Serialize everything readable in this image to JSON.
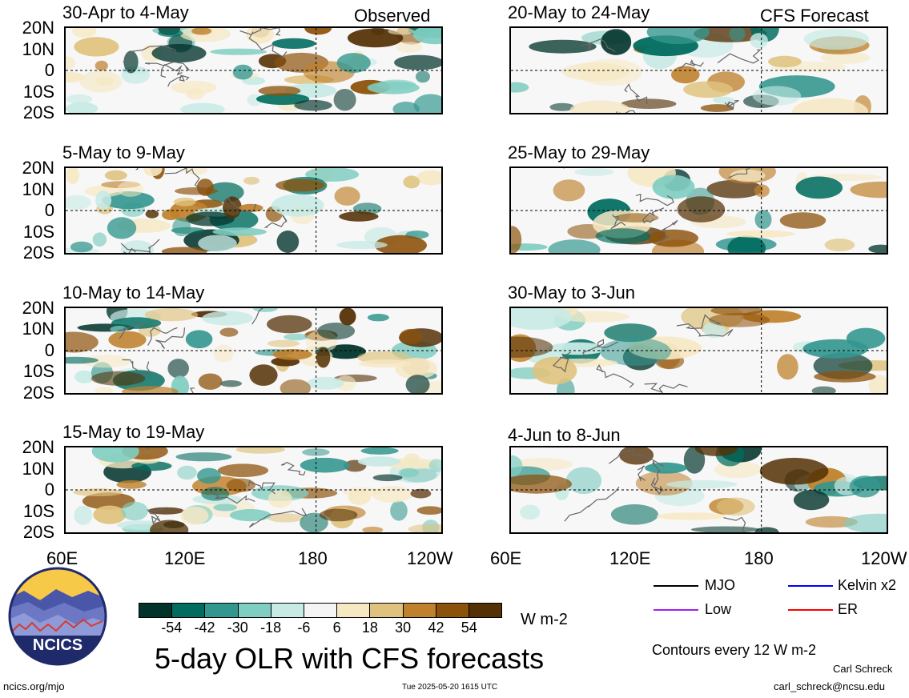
{
  "header": {
    "observed_label": "Observed",
    "forecast_label": "CFS Forecast"
  },
  "panels_left": [
    {
      "title": "30-Apr to 4-May"
    },
    {
      "title": "5-May to 9-May"
    },
    {
      "title": "10-May to 14-May"
    },
    {
      "title": "15-May to 19-May"
    }
  ],
  "panels_right": [
    {
      "title": "20-May to 24-May"
    },
    {
      "title": "25-May to 29-May"
    },
    {
      "title": "30-May to 3-Jun"
    },
    {
      "title": "4-Jun to 8-Jun"
    }
  ],
  "axes": {
    "lat_labels": [
      "20N",
      "10N",
      "0",
      "10S",
      "20S"
    ],
    "lon_labels": [
      "60E",
      "120E",
      "180",
      "120W"
    ]
  },
  "colorbar": {
    "colors": [
      "#01332b",
      "#016c5f",
      "#34978f",
      "#80cdc1",
      "#c7eae5",
      "#f5f5f5",
      "#f6e8c3",
      "#dfc27d",
      "#bf812d",
      "#8c510a",
      "#543005"
    ],
    "tick_labels": [
      "-54",
      "-42",
      "-30",
      "-18",
      "-6",
      "6",
      "18",
      "30",
      "42",
      "54"
    ],
    "units": "W m-2"
  },
  "title": "5-day OLR with CFS forecasts",
  "legend": {
    "items": [
      {
        "label": "MJO",
        "color": "#000000"
      },
      {
        "label": "Kelvin x2",
        "color": "#0000ff"
      },
      {
        "label": "Low",
        "color": "#a020f0"
      },
      {
        "label": "ER",
        "color": "#ff0000"
      }
    ],
    "contours_note": "Contours every 12 W m-2"
  },
  "logo": {
    "text": "NCICS"
  },
  "footer": {
    "url": "ncics.org/mjo",
    "timestamp": "Tue 2025-05-20 1615 UTC",
    "author": "Carl Schreck",
    "email": "carl_schreck@ncsu.edu"
  }
}
